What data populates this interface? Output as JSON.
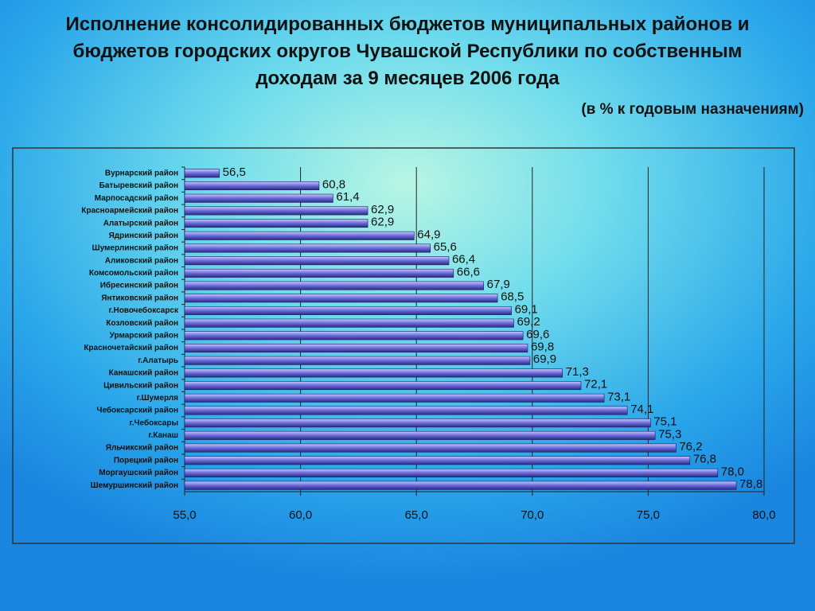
{
  "chart_data": {
    "type": "hbar",
    "title": "Исполнение консолидированных бюджетов муниципальных районов и бюджетов городских округов Чувашской Республики по собственным доходам за 9 месяцев 2006 года",
    "subtitle": "(в % к годовым назначениям)",
    "categories": [
      "Вурнарский район",
      "Батыревский район",
      "Марпосадский район",
      "Красноармейский район",
      "Алатырский район",
      "Ядринский район",
      "Шумерлинский район",
      "Аликовский район",
      "Комсомольский район",
      "Ибресинский район",
      "Янтиковский район",
      "г.Новочебоксарск",
      "Козловский район",
      "Урмарский район",
      "Красночетайский район",
      "г.Алатырь",
      "Канашский район",
      "Цивильский район",
      "г.Шумерля",
      "Чебоксарский район",
      "г.Чебоксары",
      "г.Канаш",
      "Яльчикский район",
      "Порецкий район",
      "Моргаушский район",
      "Шемуршинский район"
    ],
    "values": [
      56.5,
      60.8,
      61.4,
      62.9,
      62.9,
      64.9,
      65.6,
      66.4,
      66.6,
      67.9,
      68.5,
      69.1,
      69.2,
      69.6,
      69.8,
      69.9,
      71.3,
      72.1,
      73.1,
      74.1,
      75.1,
      75.3,
      76.2,
      76.8,
      78.0,
      78.8
    ],
    "value_labels": [
      "56,5",
      "60,8",
      "61,4",
      "62,9",
      "62,9",
      "64,9",
      "65,6",
      "66,4",
      "66,6",
      "67,9",
      "68,5",
      "69,1",
      "69,2",
      "69,6",
      "69,8",
      "69,9",
      "71,3",
      "72,1",
      "73,1",
      "74,1",
      "75,1",
      "75,3",
      "76,2",
      "76,8",
      "78,0",
      "78,8"
    ],
    "color": "#6a6ad8",
    "xlim": [
      55,
      80
    ],
    "xticks": [
      {
        "value": 55,
        "label": "55,0"
      },
      {
        "value": 60,
        "label": "60,0"
      },
      {
        "value": 65,
        "label": "65,0"
      },
      {
        "value": 70,
        "label": "70,0"
      },
      {
        "value": 75,
        "label": "75,0"
      },
      {
        "value": 80,
        "label": "80,0"
      }
    ],
    "grid": true
  }
}
